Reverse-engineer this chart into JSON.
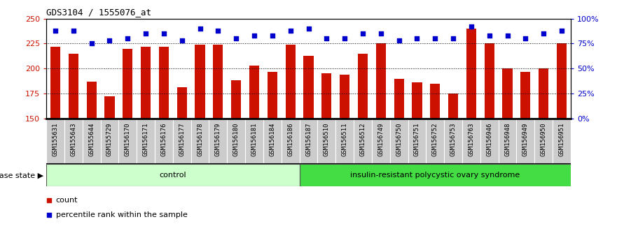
{
  "title": "GDS3104 / 1555076_at",
  "samples": [
    "GSM155631",
    "GSM155643",
    "GSM155644",
    "GSM155729",
    "GSM156170",
    "GSM156171",
    "GSM156176",
    "GSM156177",
    "GSM156178",
    "GSM156179",
    "GSM156180",
    "GSM156181",
    "GSM156184",
    "GSM156186",
    "GSM156187",
    "GSM156510",
    "GSM156511",
    "GSM156512",
    "GSM156749",
    "GSM156750",
    "GSM156751",
    "GSM156752",
    "GSM156753",
    "GSM156763",
    "GSM156946",
    "GSM156948",
    "GSM156949",
    "GSM156950",
    "GSM156951"
  ],
  "bar_values": [
    222,
    215,
    187,
    172,
    220,
    222,
    222,
    181,
    224,
    224,
    188,
    203,
    197,
    224,
    213,
    195,
    194,
    215,
    225,
    190,
    186,
    185,
    175,
    240,
    225,
    200,
    197,
    200,
    225
  ],
  "percentile_values": [
    88,
    88,
    75,
    78,
    80,
    85,
    85,
    78,
    90,
    88,
    80,
    83,
    83,
    88,
    90,
    80,
    80,
    85,
    85,
    78,
    80,
    80,
    80,
    92,
    83,
    83,
    80,
    85,
    88
  ],
  "control_count": 14,
  "ylim_left": [
    150,
    250
  ],
  "ylim_right": [
    0,
    100
  ],
  "yticks_left": [
    150,
    175,
    200,
    225,
    250
  ],
  "yticks_right": [
    0,
    25,
    50,
    75,
    100
  ],
  "ytick_labels_right": [
    "0%",
    "25%",
    "50%",
    "75%",
    "100%"
  ],
  "bar_color": "#cc1100",
  "percentile_color": "#0000cc",
  "control_color": "#ccffcc",
  "disease_color": "#44dd44",
  "control_label": "control",
  "disease_label": "insulin-resistant polycystic ovary syndrome",
  "disease_state_label": "disease state",
  "legend_count": "count",
  "legend_percentile": "percentile rank within the sample",
  "bg_color": "#ffffff",
  "xtick_bg": "#cccccc",
  "axis_label_color_left": "#cc1100",
  "axis_label_color_right": "#0000cc",
  "grid_yticks": [
    175,
    200,
    225
  ]
}
